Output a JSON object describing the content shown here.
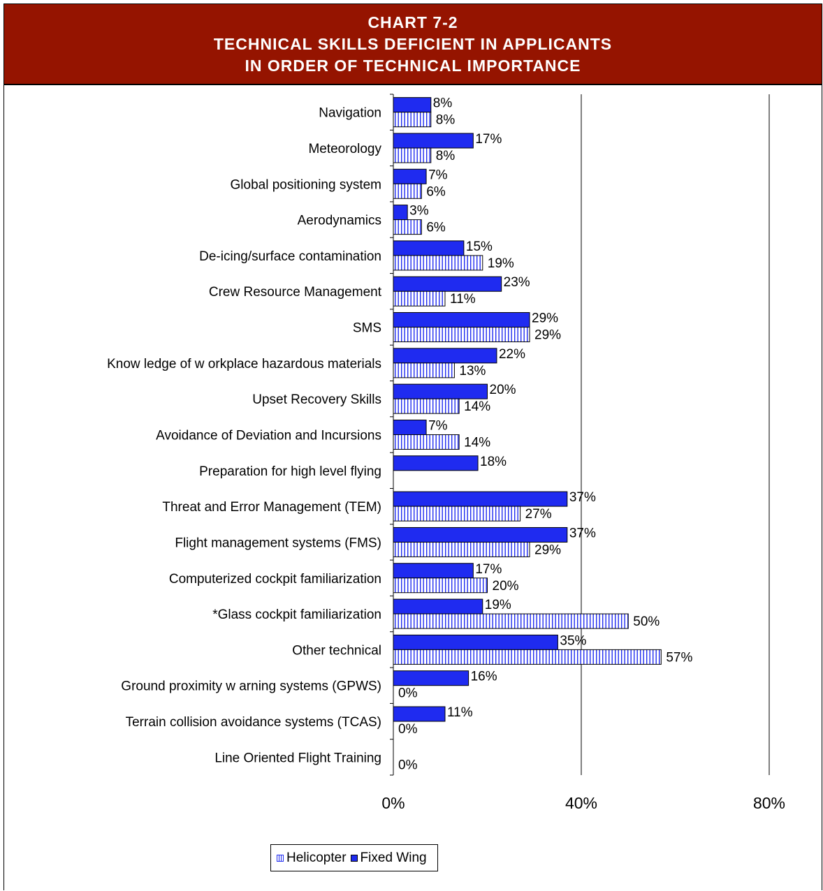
{
  "header": {
    "line1": "CHART 7-2",
    "line2": "TECHNICAL SKILLS DEFICIENT IN APPLICANTS",
    "line3": "IN ORDER OF TECHNICAL IMPORTANCE"
  },
  "colors": {
    "header_bg": "#951400",
    "fixed_wing": "#1f2bf0",
    "helicopter_stripe": "#1f2bf0"
  },
  "chart_data": {
    "type": "bar",
    "orientation": "horizontal",
    "categories": [
      "Navigation",
      "Meteorology",
      "Global positioning system",
      "Aerodynamics",
      "De-icing/surface contamination",
      "Crew  Resource Management",
      "SMS",
      "Know ledge of w orkplace hazardous materials",
      "Upset Recovery Skills",
      "Avoidance of Deviation and Incursions",
      "Preparation for high level flying",
      "Threat and Error Management (TEM)",
      "Flight management systems (FMS)",
      "Computerized cockpit familiarization",
      "*Glass cockpit familiarization",
      "Other technical",
      "Ground proximity w arning systems (GPWS)",
      "Terrain collision avoidance systems (TCAS)",
      "Line Oriented Flight Training"
    ],
    "series": [
      {
        "name": "Fixed Wing",
        "values": [
          8,
          17,
          7,
          3,
          15,
          23,
          29,
          22,
          20,
          7,
          18,
          37,
          37,
          17,
          19,
          35,
          16,
          11,
          null
        ],
        "labels": [
          "8%",
          "17%",
          "7%",
          "3%",
          "15%",
          "23%",
          "29%",
          "22%",
          "20%",
          "7%",
          "18%",
          "37%",
          "37%",
          "17%",
          "19%",
          "35%",
          "16%",
          "11%",
          ""
        ]
      },
      {
        "name": "Helicopter",
        "values": [
          8,
          8,
          6,
          6,
          19,
          11,
          29,
          13,
          14,
          14,
          null,
          27,
          29,
          20,
          50,
          57,
          0,
          0,
          0
        ],
        "labels": [
          "8%",
          "8%",
          "6%",
          "6%",
          "19%",
          "11%",
          "29%",
          "13%",
          "14%",
          "14%",
          "",
          "27%",
          "29%",
          "20%",
          "50%",
          "57%",
          "0%",
          "0%",
          "0%"
        ]
      }
    ],
    "xlim": [
      0,
      80
    ],
    "xticks": [
      "0%",
      "40%",
      "80%"
    ],
    "grid": true,
    "legend": {
      "position": "bottom",
      "entries": [
        "Helicopter",
        "Fixed Wing"
      ]
    }
  }
}
